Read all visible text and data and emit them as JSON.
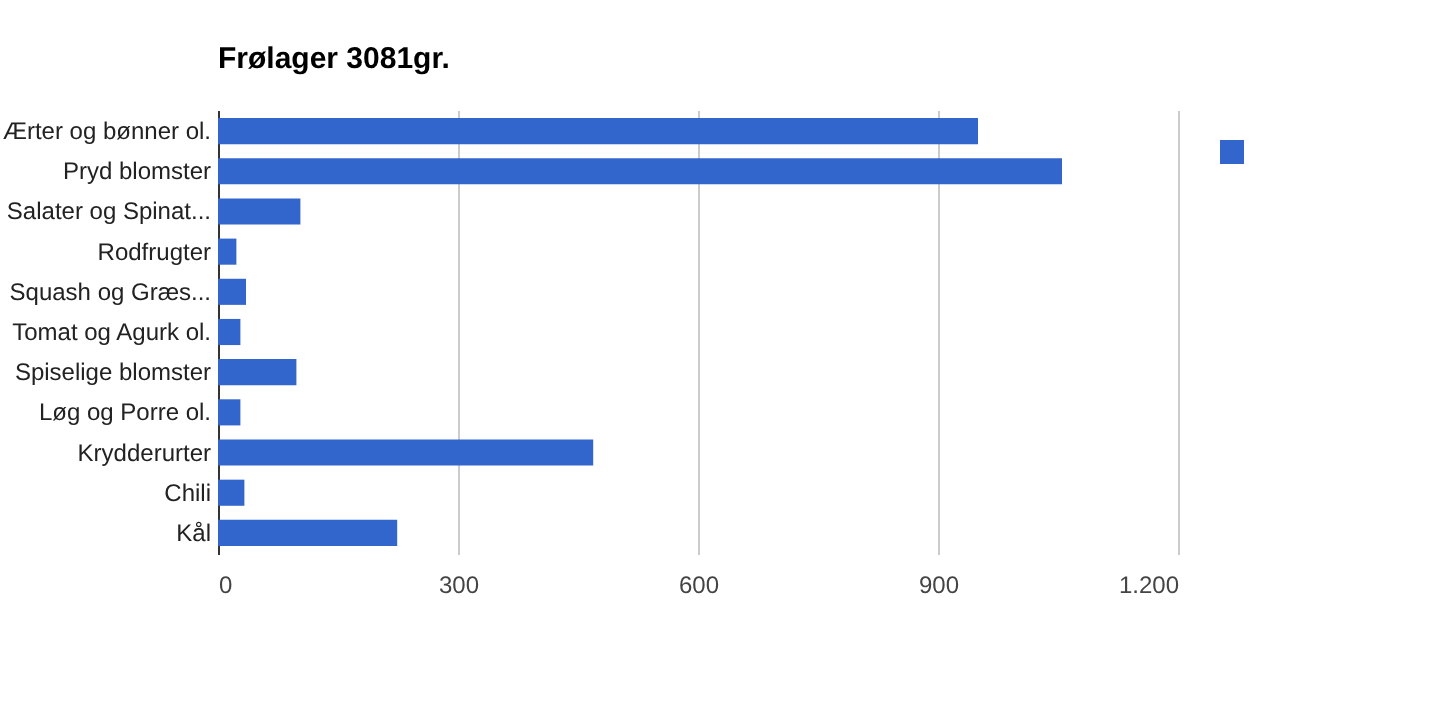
{
  "chart_data": {
    "type": "bar",
    "orientation": "horizontal",
    "title": "Frølager 3081gr.",
    "categories": [
      "Ærter og bønner ol.",
      "Pryd blomster",
      "Salater og Spinat...",
      "Rodfrugter",
      "Squash og Græs...",
      "Tomat og Agurk ol.",
      "Spiselige blomster",
      "Løg og Porre ol.",
      "Krydderurter",
      "Chili",
      "Kål"
    ],
    "series": [
      {
        "color": "#3366cc",
        "values": [
          950,
          1055,
          103,
          23,
          35,
          28,
          98,
          28,
          469,
          33,
          224
        ]
      }
    ],
    "xlim": [
      0,
      1200
    ],
    "xticks": [
      0,
      300,
      600,
      900,
      {
        "value": 1200,
        "label": "1.200"
      }
    ],
    "grid": "x"
  }
}
